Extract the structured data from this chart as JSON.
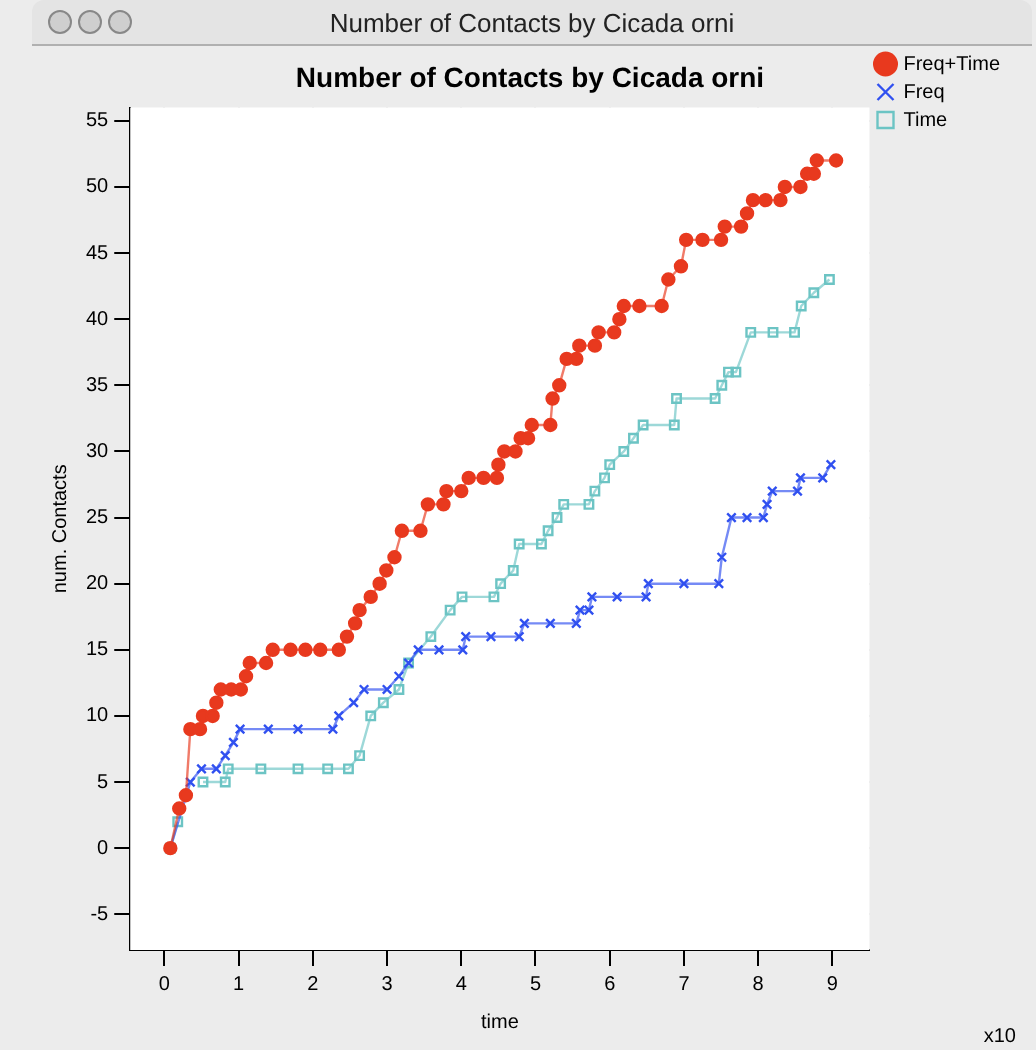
{
  "chart_data": {
    "type": "line",
    "title": "Number of Contacts by Cicada orni",
    "xlabel": "time",
    "ylabel": "num. Contacts",
    "annotations": [
      "Number of Contacts by Cicada orni",
      "x10"
    ],
    "xlim": [
      -0.46,
      9.5
    ],
    "ylim": [
      -7.7,
      56
    ],
    "xticks": [
      0,
      1,
      2,
      3,
      4,
      5,
      6,
      7,
      8,
      9
    ],
    "yticks": [
      -5,
      0,
      5,
      10,
      15,
      20,
      25,
      30,
      35,
      40,
      45,
      50,
      55
    ],
    "grid": true,
    "legend": "top right",
    "line_style": "solid",
    "series": [
      {
        "name": "Freq+Time",
        "color": "#e8391e",
        "marker": "circle",
        "x": [
          0.08,
          0.2,
          0.29,
          0.35,
          0.48,
          0.52,
          0.65,
          0.7,
          0.76,
          0.9,
          1.03,
          1.1,
          1.15,
          1.37,
          1.46,
          1.7,
          1.9,
          2.1,
          2.35,
          2.46,
          2.57,
          2.63,
          2.78,
          2.9,
          2.99,
          3.1,
          3.2,
          3.45,
          3.55,
          3.76,
          3.8,
          4.0,
          4.1,
          4.3,
          4.48,
          4.5,
          4.58,
          4.73,
          4.8,
          4.9,
          4.95,
          5.2,
          5.23,
          5.32,
          5.42,
          5.55,
          5.59,
          5.8,
          5.85,
          6.06,
          6.13,
          6.19,
          6.4,
          6.7,
          6.79,
          6.96,
          7.03,
          7.25,
          7.5,
          7.55,
          7.77,
          7.85,
          7.93,
          8.1,
          8.3,
          8.36,
          8.57,
          8.66,
          8.75,
          8.79,
          9.05
        ],
        "values": [
          0,
          3,
          4,
          9,
          9,
          10,
          10,
          11,
          12,
          12,
          12,
          13,
          14,
          14,
          15,
          15,
          15,
          15,
          15,
          16,
          17,
          18,
          19,
          20,
          21,
          22,
          24,
          24,
          26,
          26,
          27,
          27,
          28,
          28,
          28,
          29,
          30,
          30,
          31,
          31,
          32,
          32,
          34,
          35,
          37,
          37,
          38,
          38,
          39,
          39,
          40,
          41,
          41,
          41,
          43,
          44,
          46,
          46,
          46,
          47,
          47,
          48,
          49,
          49,
          49,
          50,
          50,
          51,
          51,
          52,
          52
        ]
      },
      {
        "name": "Freq",
        "color": "#3050f0",
        "marker": "cross",
        "x": [
          0.08,
          0.35,
          0.5,
          0.7,
          0.82,
          0.93,
          1.02,
          1.4,
          1.8,
          2.27,
          2.35,
          2.55,
          2.69,
          3.0,
          3.16,
          3.29,
          3.42,
          3.7,
          4.02,
          4.06,
          4.4,
          4.78,
          4.85,
          5.2,
          5.55,
          5.6,
          5.72,
          5.76,
          6.1,
          6.49,
          6.52,
          7.0,
          7.47,
          7.51,
          7.64,
          7.85,
          8.07,
          8.12,
          8.19,
          8.53,
          8.57,
          8.87,
          8.98
        ],
        "values": [
          0,
          5,
          6,
          6,
          7,
          8,
          9,
          9,
          9,
          9,
          10,
          11,
          12,
          12,
          13,
          14,
          15,
          15,
          15,
          16,
          16,
          16,
          17,
          17,
          17,
          18,
          18,
          19,
          19,
          19,
          20,
          20,
          20,
          22,
          25,
          25,
          25,
          26,
          27,
          27,
          28,
          28,
          29
        ]
      },
      {
        "name": "Time",
        "color": "#6cc4c4",
        "marker": "square",
        "x": [
          0.08,
          0.18,
          0.3,
          0.52,
          0.82,
          0.86,
          1.3,
          1.8,
          2.2,
          2.48,
          2.63,
          2.78,
          2.95,
          3.16,
          3.29,
          3.59,
          3.85,
          4.01,
          4.44,
          4.53,
          4.7,
          4.78,
          5.08,
          5.17,
          5.29,
          5.38,
          5.72,
          5.8,
          5.93,
          6.0,
          6.19,
          6.32,
          6.45,
          6.87,
          6.9,
          7.42,
          7.51,
          7.6,
          7.7,
          7.9,
          8.2,
          8.49,
          8.58,
          8.75,
          8.96
        ],
        "values": [
          0,
          2,
          null,
          5,
          5,
          6,
          6,
          6,
          6,
          6,
          7,
          10,
          11,
          12,
          14,
          16,
          18,
          19,
          19,
          20,
          21,
          23,
          23,
          24,
          25,
          26,
          26,
          27,
          28,
          29,
          30,
          31,
          32,
          32,
          34,
          34,
          35,
          36,
          36,
          39,
          39,
          39,
          41,
          42,
          43
        ]
      }
    ]
  }
}
